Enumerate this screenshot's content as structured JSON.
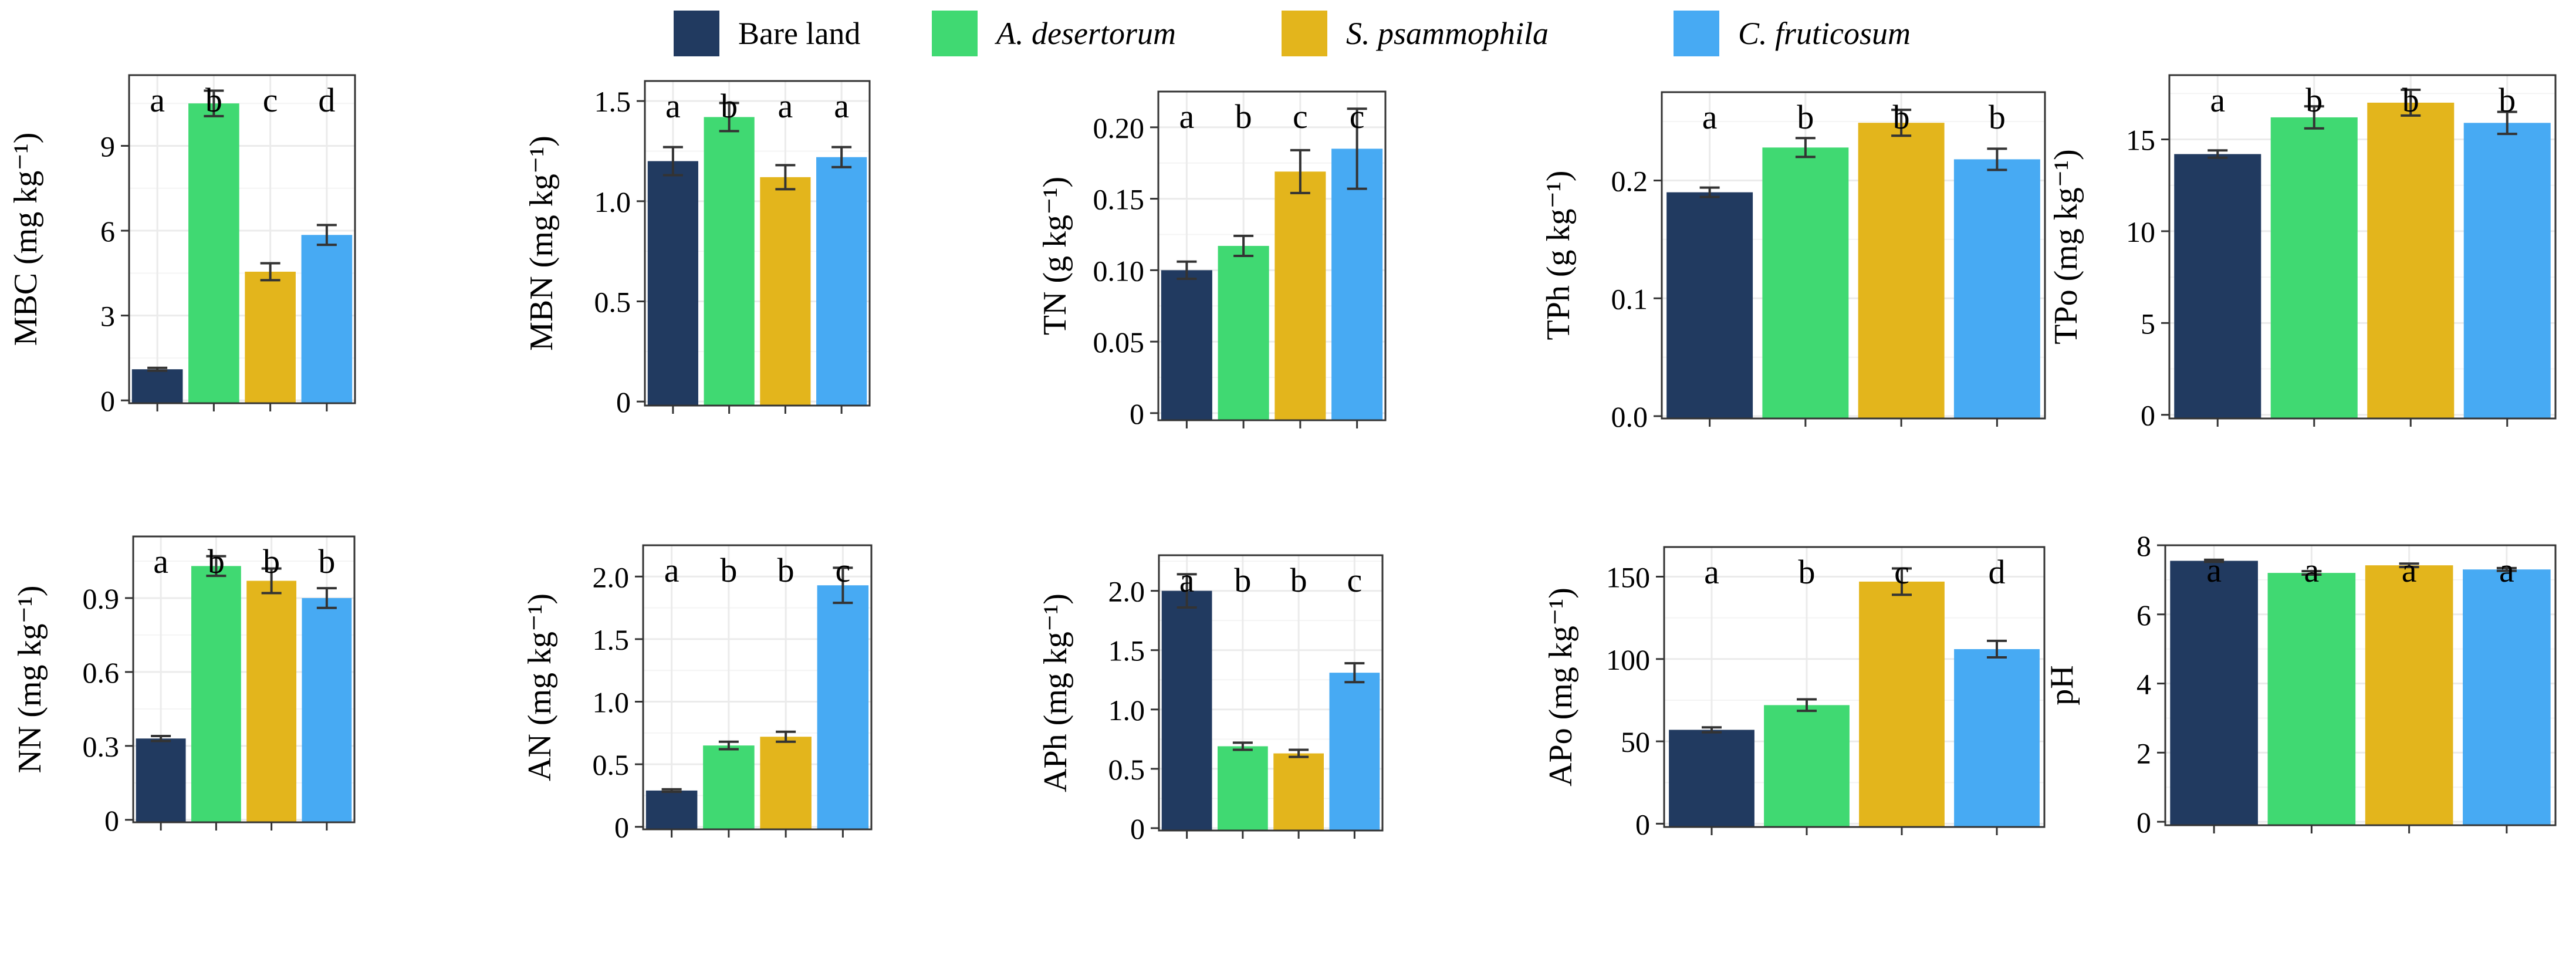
{
  "legend": {
    "items": [
      {
        "label": "Bare land",
        "color": "#213a60",
        "italic": false
      },
      {
        "label": "A. desertorum",
        "color": "#40d972",
        "italic": true
      },
      {
        "label": "S. psammophila",
        "color": "#e3b51c",
        "italic": true
      },
      {
        "label": "C. fruticosum",
        "color": "#47aaf3",
        "italic": true
      }
    ]
  },
  "chart_data": [
    {
      "type": "bar",
      "ylabel": "MBC (mg kg⁻¹)",
      "ylim": [
        -0.1,
        11.5
      ],
      "yticks": [
        0,
        3,
        6,
        9
      ],
      "tick_labels": [
        "0",
        "3",
        "6",
        "9"
      ],
      "categories": [
        "Bare land",
        "A. desertorum",
        "S. psammophila",
        "C. fruticosum"
      ],
      "values": [
        1.1,
        10.5,
        4.55,
        5.85
      ],
      "errors": [
        0.05,
        0.45,
        0.3,
        0.35
      ],
      "letters": [
        "a",
        "b",
        "c",
        "d"
      ]
    },
    {
      "type": "bar",
      "ylabel": "MBN (mg kg⁻¹)",
      "ylim": [
        -0.02,
        1.6
      ],
      "yticks": [
        0,
        0.5,
        1.0,
        1.5
      ],
      "tick_labels": [
        "0",
        "0.5",
        "1.0",
        "1.5"
      ],
      "categories": [
        "Bare land",
        "A. desertorum",
        "S. psammophila",
        "C. fruticosum"
      ],
      "values": [
        1.2,
        1.42,
        1.12,
        1.22
      ],
      "errors": [
        0.07,
        0.07,
        0.06,
        0.05
      ],
      "letters": [
        "a",
        "b",
        "a",
        "a"
      ]
    },
    {
      "type": "bar",
      "ylabel": "TN (g kg⁻¹)",
      "ylim": [
        -0.005,
        0.225
      ],
      "yticks": [
        0,
        0.05,
        0.1,
        0.15,
        0.2
      ],
      "tick_labels": [
        "0",
        "0.05",
        "0.10",
        "0.15",
        "0.20"
      ],
      "categories": [
        "Bare land",
        "A. desertorum",
        "S. psammophila",
        "C. fruticosum"
      ],
      "values": [
        0.1,
        0.117,
        0.169,
        0.185
      ],
      "errors": [
        0.006,
        0.007,
        0.015,
        0.028
      ],
      "letters": [
        "a",
        "b",
        "c",
        "c"
      ]
    },
    {
      "type": "bar",
      "ylabel": "TPh (g kg⁻¹)",
      "ylim": [
        -0.002,
        0.275
      ],
      "yticks": [
        0,
        0.1,
        0.2
      ],
      "tick_labels": [
        "0.0",
        "0.1",
        "0.2"
      ],
      "categories": [
        "Bare land",
        "A. desertorum",
        "S. psammophila",
        "C. fruticosum"
      ],
      "values": [
        0.19,
        0.228,
        0.249,
        0.218
      ],
      "errors": [
        0.004,
        0.008,
        0.011,
        0.009
      ],
      "letters": [
        "a",
        "b",
        "b",
        "b"
      ]
    },
    {
      "type": "bar",
      "ylabel": "TPo (mg kg⁻¹)",
      "ylim": [
        -0.2,
        18.5
      ],
      "yticks": [
        0,
        5,
        10,
        15
      ],
      "tick_labels": [
        "0",
        "5",
        "10",
        "15"
      ],
      "categories": [
        "Bare land",
        "A. desertorum",
        "S. psammophila",
        "C. fruticosum"
      ],
      "values": [
        14.2,
        16.2,
        17.0,
        15.9
      ],
      "errors": [
        0.2,
        0.6,
        0.7,
        0.6
      ],
      "letters": [
        "a",
        "b",
        "b",
        "b"
      ]
    },
    {
      "type": "bar",
      "ylabel": "NN (mg kg⁻¹)",
      "ylim": [
        -0.01,
        1.15
      ],
      "yticks": [
        0,
        0.3,
        0.6,
        0.9
      ],
      "tick_labels": [
        "0",
        "0.3",
        "0.6",
        "0.9"
      ],
      "categories": [
        "Bare land",
        "A. desertorum",
        "S. psammophila",
        "C. fruticosum"
      ],
      "values": [
        0.33,
        1.03,
        0.97,
        0.9
      ],
      "errors": [
        0.01,
        0.04,
        0.05,
        0.04
      ],
      "letters": [
        "a",
        "b",
        "b",
        "b"
      ]
    },
    {
      "type": "bar",
      "ylabel": "AN (mg kg⁻¹)",
      "ylim": [
        -0.02,
        2.25
      ],
      "yticks": [
        0,
        0.5,
        1.0,
        1.5,
        2.0
      ],
      "tick_labels": [
        "0",
        "0.5",
        "1.0",
        "1.5",
        "2.0"
      ],
      "categories": [
        "Bare land",
        "A. desertorum",
        "S. psammophila",
        "C. fruticosum"
      ],
      "values": [
        0.29,
        0.65,
        0.72,
        1.93
      ],
      "errors": [
        0.01,
        0.03,
        0.04,
        0.14
      ],
      "letters": [
        "a",
        "b",
        "b",
        "c"
      ]
    },
    {
      "type": "bar",
      "ylabel": "APh (mg kg⁻¹)",
      "ylim": [
        -0.02,
        2.3
      ],
      "yticks": [
        0,
        0.5,
        1.0,
        1.5,
        2.0
      ],
      "tick_labels": [
        "0",
        "0.5",
        "1.0",
        "1.5",
        "2.0"
      ],
      "categories": [
        "Bare land",
        "A. desertorum",
        "S. psammophila",
        "C. fruticosum"
      ],
      "values": [
        2.0,
        0.69,
        0.63,
        1.31
      ],
      "errors": [
        0.14,
        0.03,
        0.03,
        0.08
      ],
      "letters": [
        "a",
        "b",
        "b",
        "c"
      ]
    },
    {
      "type": "bar",
      "ylabel": "APo (mg kg⁻¹)",
      "ylim": [
        -2,
        168
      ],
      "yticks": [
        0,
        50,
        100,
        150
      ],
      "tick_labels": [
        "0",
        "50",
        "100",
        "150"
      ],
      "categories": [
        "Bare land",
        "A. desertorum",
        "S. psammophila",
        "C. fruticosum"
      ],
      "values": [
        57,
        72,
        147,
        106
      ],
      "errors": [
        1.5,
        3.5,
        8,
        5
      ],
      "letters": [
        "a",
        "b",
        "c",
        "d"
      ]
    },
    {
      "type": "bar",
      "ylabel": "pH",
      "ylim": [
        -0.1,
        8.0
      ],
      "yticks": [
        0,
        2,
        4,
        6,
        8
      ],
      "tick_labels": [
        "0",
        "2",
        "4",
        "6",
        "8"
      ],
      "categories": [
        "Bare land",
        "A. desertorum",
        "S. psammophila",
        "C. fruticosum"
      ],
      "values": [
        7.55,
        7.2,
        7.42,
        7.3
      ],
      "errors": [
        0.03,
        0.05,
        0.05,
        0.04
      ],
      "letters": [
        "a",
        "a",
        "a",
        "a"
      ]
    }
  ]
}
